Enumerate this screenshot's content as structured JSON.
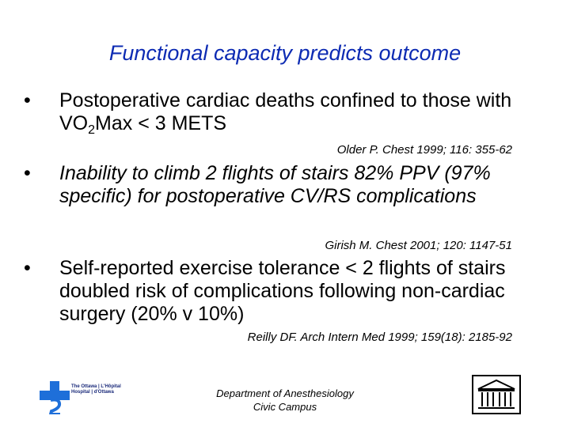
{
  "title": "Functional capacity predicts outcome",
  "bullets": [
    {
      "symbol": "•",
      "text_before_sub": "Postoperative cardiac deaths confined to those with VO",
      "sub": "2",
      "text_after_sub": "Max < 3 METS",
      "citation": "Older P. Chest 1999; 116: 355-62"
    },
    {
      "symbol": "•",
      "text": "Inability to climb 2 flights of stairs 82% PPV (97% specific) for postoperative CV/RS complications",
      "citation": "Girish M. Chest 2001; 120: 1147-51"
    },
    {
      "symbol": "•",
      "text": "Self-reported exercise tolerance < 2 flights of stairs doubled risk of complications following non-cardiac surgery (20% v 10%)",
      "citation": "Reilly DF. Arch Intern Med 1999; 159(18): 2185-92"
    }
  ],
  "footer": {
    "line1": "Department of Anesthesiology",
    "line2": "Civic Campus"
  },
  "logo_left": {
    "text_en_1": "The Ottawa",
    "text_en_2": "Hospital",
    "text_fr_1": "L'Hôpital",
    "text_fr_2": "d'Ottawa"
  },
  "colors": {
    "title": "#0d2bb3",
    "logo_blue": "#1e6fd9"
  }
}
